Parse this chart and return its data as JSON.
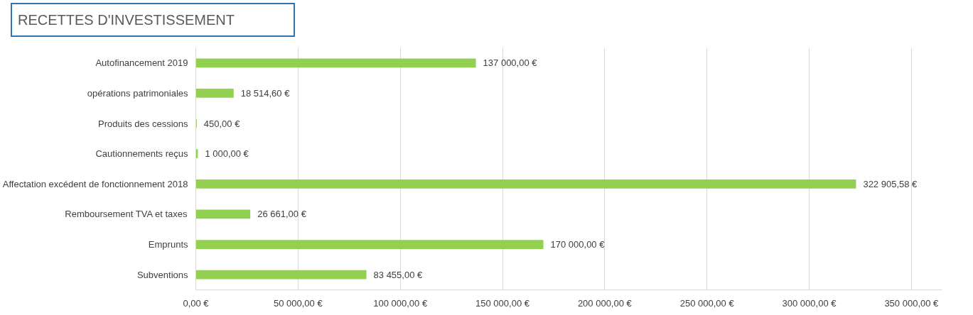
{
  "chart_data": {
    "type": "bar",
    "orientation": "horizontal",
    "title": "RECETTES D'INVESTISSEMENT",
    "categories": [
      "Autofinancement 2019",
      "opérations patrimoniales",
      "Produits des cessions",
      "Cautionnements reçus",
      "Affectation excédent de fonctionnement 2018",
      "Remboursement TVA et taxes",
      "Emprunts",
      "Subventions"
    ],
    "values": [
      137000.0,
      18514.6,
      450.0,
      1000.0,
      322905.58,
      26661.0,
      170000.0,
      83455.0
    ],
    "value_labels": [
      "137 000,00 €",
      "18 514,60 €",
      "450,00 €",
      "1 000,00 €",
      "322 905,58 €",
      "26 661,00 €",
      "170 000,00 €",
      "83 455,00 €"
    ],
    "color": "#92d050",
    "xlim": [
      0,
      365000
    ],
    "xticks": [
      {
        "value": 0,
        "label": "0,00 €"
      },
      {
        "value": 50000,
        "label": "50 000,00 €"
      },
      {
        "value": 100000,
        "label": "100 000,00 €"
      },
      {
        "value": 150000,
        "label": "150 000,00 €"
      },
      {
        "value": 200000,
        "label": "200 000,00 €"
      },
      {
        "value": 250000,
        "label": "250 000,00 €"
      },
      {
        "value": 300000,
        "label": "300 000,00 €"
      },
      {
        "value": 350000,
        "label": "350 000,00 €"
      }
    ],
    "grid": "x"
  }
}
